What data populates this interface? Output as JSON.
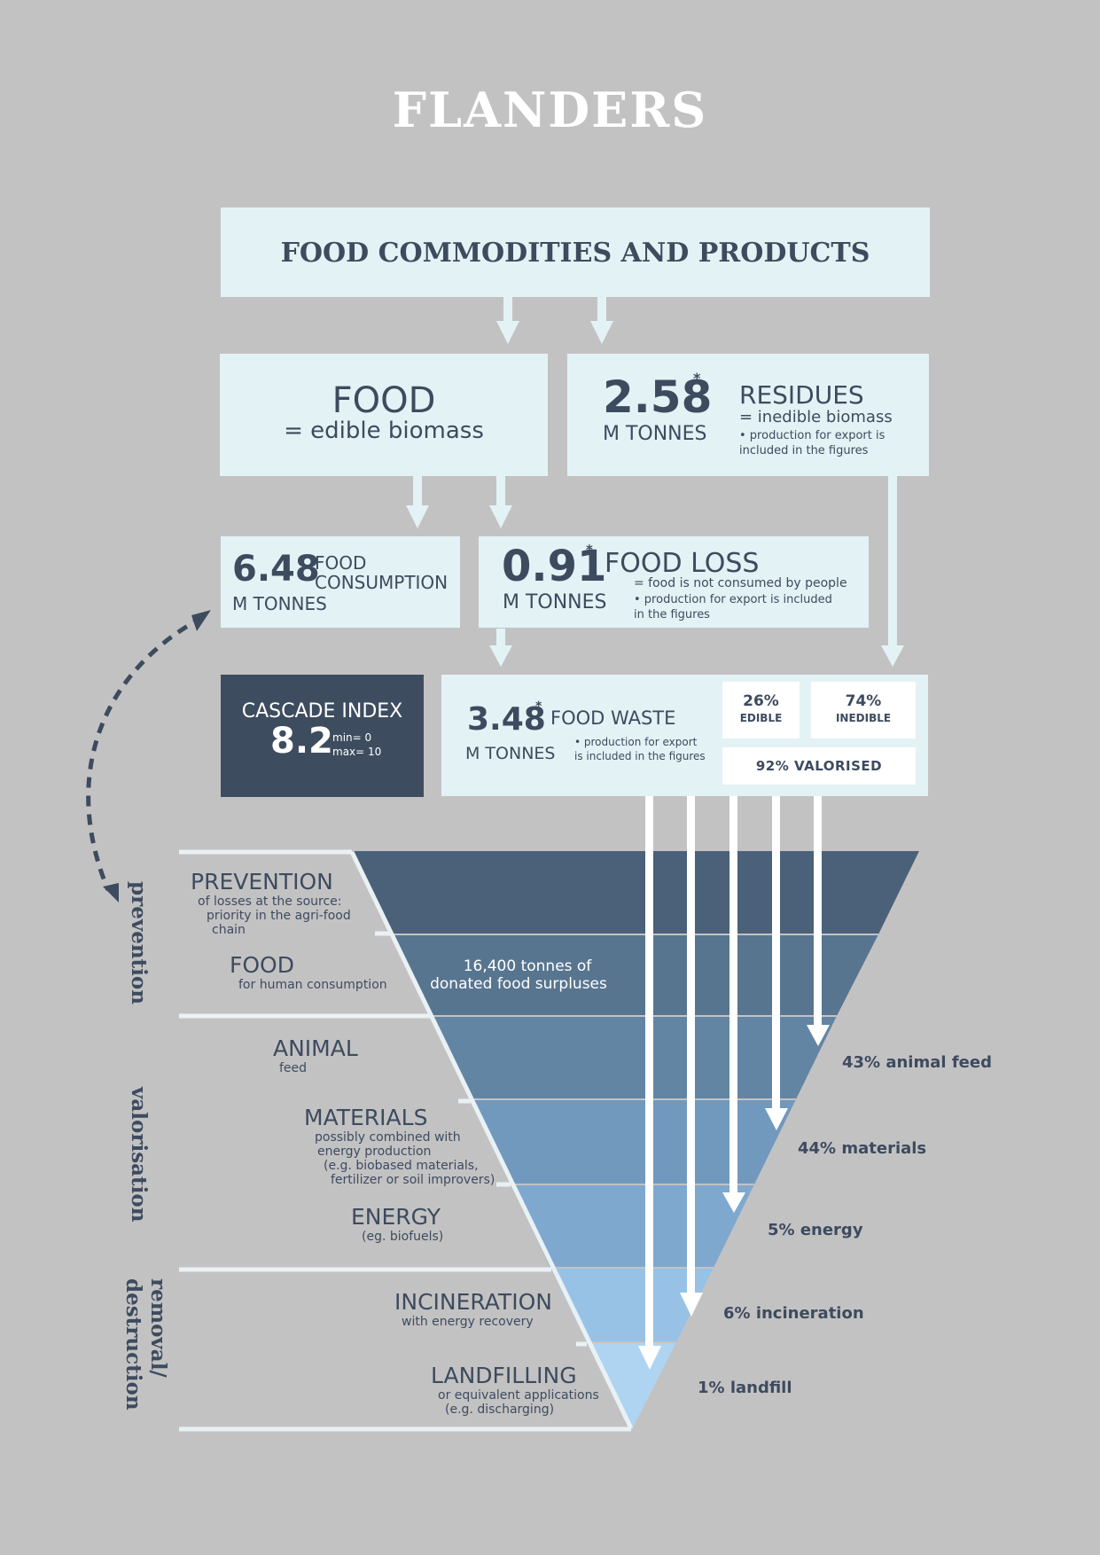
{
  "title": "FLANDERS",
  "commodities": {
    "label": "FOOD COMMODITIES AND PRODUCTS"
  },
  "food": {
    "label": "FOOD",
    "definition": "= edible biomass"
  },
  "residues": {
    "value": "2.58",
    "marker": "*",
    "unit": "M TONNES",
    "label": "RESIDUES",
    "definition": "= inedible biomass",
    "note_line1": "• production for export is",
    "note_line2": "included in the figures"
  },
  "consumption": {
    "value": "6.48",
    "label_line1": "FOOD",
    "label_line2": "CONSUMPTION",
    "unit": "M TONNES"
  },
  "food_loss": {
    "value": "0.91",
    "marker": "*",
    "unit": "M TONNES",
    "label": "FOOD LOSS",
    "note_line1": "= food is not consumed by people",
    "note_line2": "• production for export is included",
    "note_line3": "in the figures"
  },
  "cascade_index": {
    "label": "CASCADE INDEX",
    "value": "8.2",
    "min": "min= 0",
    "max": "max= 10"
  },
  "food_waste": {
    "value": "3.48",
    "marker": "*",
    "unit": "M TONNES",
    "label": "FOOD WASTE",
    "note_line1": "• production for export",
    "note_line2": "is included in the figures",
    "edible_pct": "26%",
    "edible_label": "EDIBLE",
    "inedible_pct": "74%",
    "inedible_label": "INEDIBLE",
    "valorised": "92% VALORISED"
  },
  "hierarchy": {
    "groups": {
      "prevention": "prevention",
      "valorisation": "valorisation",
      "removal_line1": "removal/",
      "removal_line2": "destruction"
    },
    "stages": {
      "prevention": {
        "title": "PREVENTION",
        "line1": "of losses at the source:",
        "line2": "priority in the agri-food",
        "line3": "chain"
      },
      "food": {
        "title": "FOOD",
        "line1": "for human consumption"
      },
      "animal": {
        "title": "ANIMAL",
        "line1": "feed"
      },
      "materials": {
        "title": "MATERIALS",
        "line1": "possibly combined with",
        "line2": "energy production",
        "line3": "(e.g. biobased materials,",
        "line4": "fertilizer or soil improvers)"
      },
      "energy": {
        "title": "ENERGY",
        "line1": "(eg. biofuels)"
      },
      "incineration": {
        "title": "INCINERATION",
        "line1": "with energy recovery"
      },
      "landfilling": {
        "title": "LANDFILLING",
        "line1": "or equivalent applications",
        "line2": "(e.g. discharging)"
      }
    },
    "donated_line1": "16,400 tonnes of",
    "donated_line2": "donated food surpluses",
    "shares": {
      "animal_feed": "43% animal feed",
      "materials": "44% materials",
      "energy": "5% energy",
      "incineration": "6% incineration",
      "landfill": "1% landfill"
    },
    "colors": {
      "prevention": "#4b6179",
      "food": "#587590",
      "animal": "#6385a4",
      "materials": "#7199be",
      "energy": "#7fa8cf",
      "incineration": "#97c2e6",
      "landfilling": "#aed4f2"
    }
  }
}
